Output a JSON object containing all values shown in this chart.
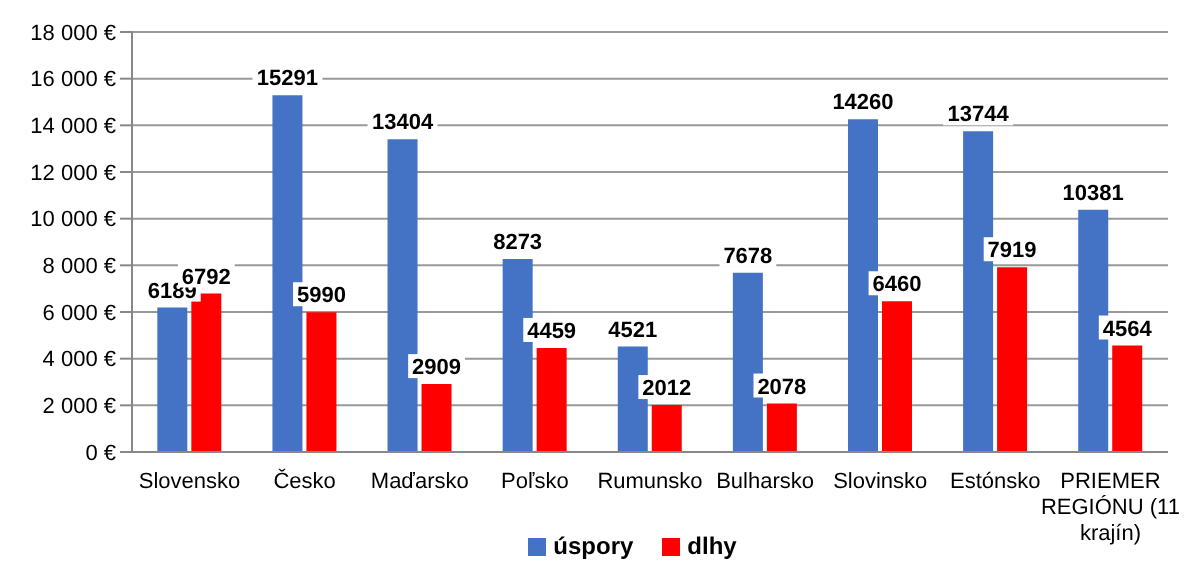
{
  "chart_data": {
    "type": "bar",
    "categories": [
      "Slovensko",
      "Česko",
      "Maďarsko",
      "Poľsko",
      "Rumunsko",
      "Bulharsko",
      "Slovinsko",
      "Estónsko",
      "PRIEMER REGIÓNU (11 krajín)"
    ],
    "series": [
      {
        "name": "úspory",
        "color": "#4472c4",
        "values": [
          6189,
          15291,
          13404,
          8273,
          4521,
          7678,
          14260,
          13744,
          10381
        ]
      },
      {
        "name": "dlhy",
        "color": "#ff0000",
        "values": [
          6792,
          5990,
          2909,
          4459,
          2012,
          2078,
          6460,
          7919,
          4564
        ]
      }
    ],
    "ylim": [
      0,
      18000
    ],
    "yticks": [
      {
        "value": 0,
        "label": "0 €"
      },
      {
        "value": 2000,
        "label": "2 000 €"
      },
      {
        "value": 4000,
        "label": "4 000 €"
      },
      {
        "value": 6000,
        "label": "6 000 €"
      },
      {
        "value": 8000,
        "label": "8 000 €"
      },
      {
        "value": 10000,
        "label": "10 000 €"
      },
      {
        "value": 12000,
        "label": "12 000 €"
      },
      {
        "value": 14000,
        "label": "14 000 €"
      },
      {
        "value": 16000,
        "label": "16 000 €"
      },
      {
        "value": 18000,
        "label": "18 000 €"
      }
    ],
    "grid": "y",
    "legend": "bottom",
    "data_labels": true
  }
}
